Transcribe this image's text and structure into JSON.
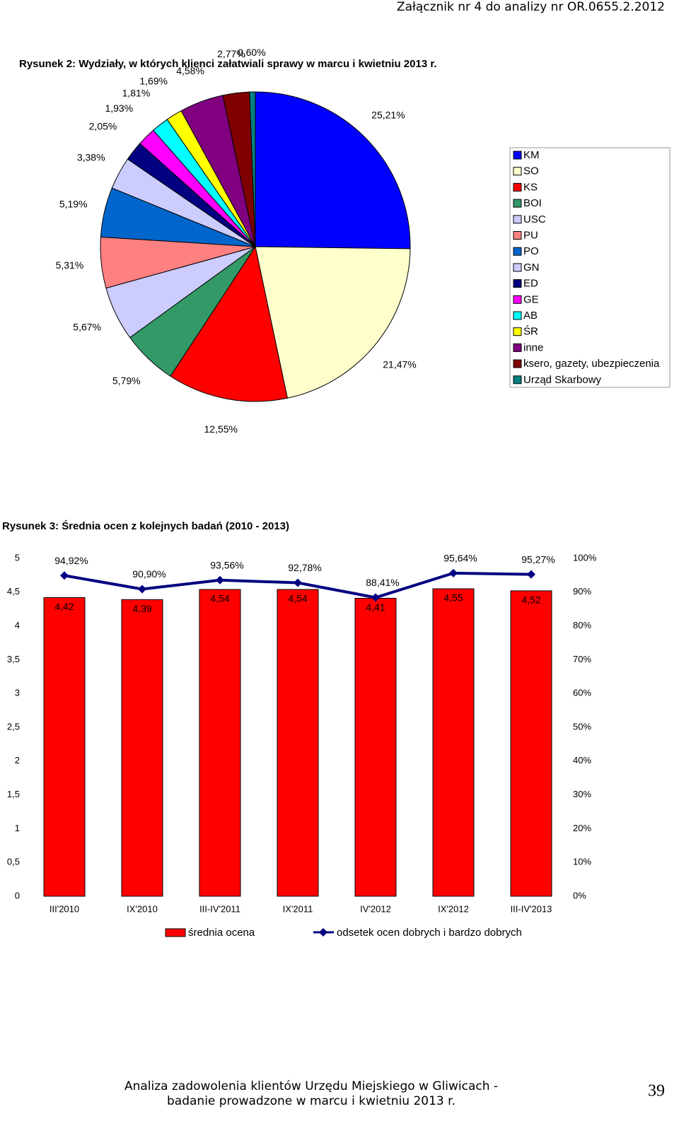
{
  "header": "Załącznik nr 4 do analizy nr OR.0655.2.2012",
  "chart_data": [
    {
      "type": "pie",
      "title": "Rysunek 2: Wydziały, w których klienci załatwiali sprawy w marcu i kwietniu 2013 r.",
      "categories": [
        "KM",
        "SO",
        "KS",
        "BOI",
        "USC",
        "PU",
        "PO",
        "GN",
        "ED",
        "GE",
        "AB",
        "ŚR",
        "inne",
        "ksero, gazety, ubezpieczenia",
        "Urząd Skarbowy"
      ],
      "values": [
        25.21,
        21.47,
        12.55,
        5.79,
        5.67,
        5.31,
        5.19,
        3.38,
        2.05,
        1.93,
        1.81,
        1.69,
        4.58,
        2.77,
        0.6
      ],
      "value_labels": [
        "25,21%",
        "21,47%",
        "12,55%",
        "5,79%",
        "5,67%",
        "5,31%",
        "5,19%",
        "3,38%",
        "2,05%",
        "1,93%",
        "1,81%",
        "1,69%",
        "4,58%",
        "2,77%",
        "0,60%"
      ],
      "colors": [
        "#0000ff",
        "#ffffcc",
        "#ff0000",
        "#339966",
        "#ccccff",
        "#ff8080",
        "#0066cc",
        "#ccccff",
        "#000080",
        "#ff00ff",
        "#00ffff",
        "#ffff00",
        "#800080",
        "#800000",
        "#008080"
      ],
      "legend": "right"
    },
    {
      "type": "bar",
      "title": "Rysunek 3: Średnia ocen z kolejnych badań (2010 - 2013)",
      "categories": [
        "III'2010",
        "IX'2010",
        "III-IV'2011",
        "IX'2011",
        "IV'2012",
        "IX'2012",
        "III-IV'2013"
      ],
      "series": [
        {
          "name": "średnia ocena",
          "type": "bar",
          "color": "#ff0000",
          "values": [
            4.42,
            4.39,
            4.54,
            4.54,
            4.41,
            4.55,
            4.52
          ],
          "value_labels": [
            "4,42",
            "4,39",
            "4,54",
            "4,54",
            "4,41",
            "4,55",
            "4,52"
          ]
        },
        {
          "name": "odsetek ocen dobrych i bardzo dobrych",
          "type": "line",
          "axis": "y2",
          "color": "#000080",
          "values": [
            94.92,
            90.9,
            93.56,
            92.78,
            88.41,
            95.64,
            95.27
          ],
          "value_labels": [
            "94,92%",
            "90,90%",
            "93,56%",
            "92,78%",
            "88,41%",
            "95,64%",
            "95,27%"
          ]
        }
      ],
      "ylim": [
        0,
        5
      ],
      "yticks": [
        0,
        {
          "value": 0.5,
          "label": "0,5"
        },
        1,
        {
          "value": 1.5,
          "label": "1,5"
        },
        2,
        {
          "value": 2.5,
          "label": "2,5"
        },
        3,
        {
          "value": 3.5,
          "label": "3,5"
        },
        4,
        {
          "value": 4.5,
          "label": "4,5"
        },
        5
      ],
      "y2lim": [
        0,
        100
      ],
      "y2ticks": [
        {
          "value": 0,
          "label": "0%"
        },
        {
          "value": 10,
          "label": "10%"
        },
        {
          "value": 20,
          "label": "20%"
        },
        {
          "value": 30,
          "label": "30%"
        },
        {
          "value": 40,
          "label": "40%"
        },
        {
          "value": 50,
          "label": "50%"
        },
        {
          "value": 60,
          "label": "60%"
        },
        {
          "value": 70,
          "label": "70%"
        },
        {
          "value": 80,
          "label": "80%"
        },
        {
          "value": 90,
          "label": "90%"
        },
        {
          "value": 100,
          "label": "100%"
        }
      ],
      "grid": false,
      "legend": "bottom"
    }
  ],
  "footer": {
    "line1": "Analiza zadowolenia klientów Urzędu Miejskiego w Gliwicach -",
    "line2": "badanie prowadzone w marcu i kwietniu 2013 r."
  },
  "page_number": "39"
}
